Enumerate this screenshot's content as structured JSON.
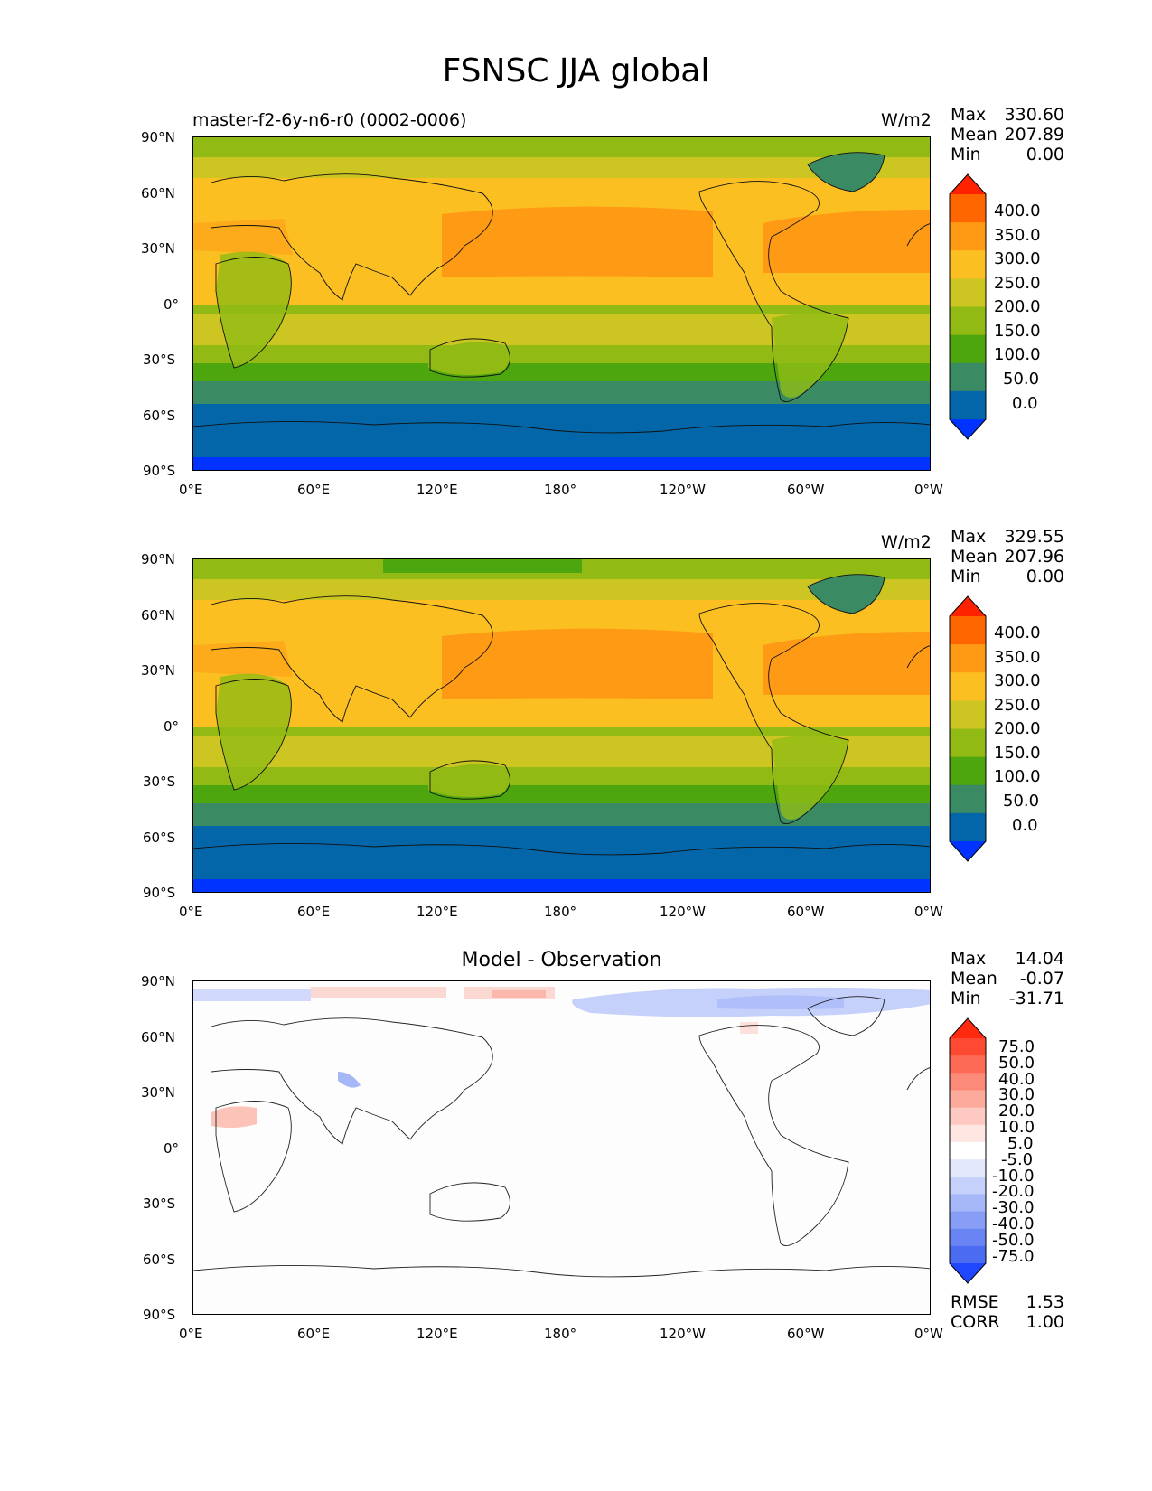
{
  "title": "FSNSC JJA global",
  "panels": [
    {
      "id": "test",
      "left_title": "master-f2-6y-n6-r0 (0002-0006)",
      "center_title": "",
      "units": "W/m2",
      "stats": [
        {
          "name": "Max",
          "value": "330.60"
        },
        {
          "name": "Mean",
          "value": "207.89"
        },
        {
          "name": "Min",
          "value": "0.00"
        }
      ],
      "palette": "abs"
    },
    {
      "id": "reference",
      "left_title": "",
      "center_title": "",
      "units": "W/m2",
      "stats": [
        {
          "name": "Max",
          "value": "329.55"
        },
        {
          "name": "Mean",
          "value": "207.96"
        },
        {
          "name": "Min",
          "value": "0.00"
        }
      ],
      "palette": "abs"
    },
    {
      "id": "diff",
      "left_title": "",
      "center_title": "Model - Observation",
      "units": "",
      "stats": [
        {
          "name": "Max",
          "value": "14.04"
        },
        {
          "name": "Mean",
          "value": "-0.07"
        },
        {
          "name": "Min",
          "value": "-31.71"
        }
      ],
      "extra_stats": [
        {
          "name": "RMSE",
          "value": "1.53"
        },
        {
          "name": "CORR",
          "value": "1.00"
        }
      ],
      "palette": "diff"
    }
  ],
  "lat_ticks": [
    "90°N",
    "60°N",
    "30°N",
    "0°",
    "30°S",
    "60°S",
    "90°S"
  ],
  "lon_ticks": [
    "0°E",
    "60°E",
    "120°E",
    "180°",
    "120°W",
    "60°W",
    "0°W"
  ],
  "colorbar_abs": {
    "labels": [
      "400.0",
      "350.0",
      "300.0",
      "250.0",
      "200.0",
      "150.0",
      "100.0",
      "50.0",
      "0.0"
    ],
    "colors": [
      "#ff2200",
      "#ff6600",
      "#ff9a14",
      "#fbbf22",
      "#cdc521",
      "#91bb14",
      "#4ea60f",
      "#3a8a64",
      "#0366a8",
      "#0033ff"
    ]
  },
  "colorbar_diff": {
    "labels": [
      "75.0",
      "50.0",
      "40.0",
      "30.0",
      "20.0",
      "10.0",
      "5.0",
      "-5.0",
      "-10.0",
      "-20.0",
      "-30.0",
      "-40.0",
      "-50.0",
      "-75.0"
    ],
    "colors": [
      "#ff2a10",
      "#fe4a33",
      "#fd6a55",
      "#fc8a78",
      "#fcaa9b",
      "#fdc9c0",
      "#fee7e3",
      "#ffffff",
      "#e3e8fd",
      "#c5d0fb",
      "#a6b7f8",
      "#889ef6",
      "#6985f3",
      "#4b6cf0",
      "#1f47ff"
    ]
  },
  "chart_data": [
    {
      "type": "heatmap",
      "title": "FSNSC JJA global",
      "subtitle": "master-f2-6y-n6-r0 (0002-0006)",
      "units": "W/m2",
      "xlabel": "",
      "ylabel": "",
      "xlim": [
        0,
        360
      ],
      "ylim": [
        -90,
        90
      ],
      "levels": [
        0,
        50,
        100,
        150,
        200,
        250,
        300,
        350,
        400
      ],
      "stats": {
        "max": 330.6,
        "mean": 207.89,
        "min": 0.0
      },
      "zonal_bands": [
        {
          "lat": [
            82,
            90
          ],
          "value": 175
        },
        {
          "lat": [
            72,
            82
          ],
          "value": 225
        },
        {
          "lat": [
            50,
            72
          ],
          "value": 275
        },
        {
          "lat": [
            18,
            50
          ],
          "value": 310
        },
        {
          "lat": [
            5,
            18
          ],
          "value": 275
        },
        {
          "lat": [
            -8,
            5
          ],
          "value": 240
        },
        {
          "lat": [
            -22,
            5
          ],
          "value": 225
        },
        {
          "lat": [
            -30,
            -22
          ],
          "value": 175
        },
        {
          "lat": [
            -37,
            -30
          ],
          "value": 125
        },
        {
          "lat": [
            -45,
            -37
          ],
          "value": 75
        },
        {
          "lat": [
            -82,
            -45
          ],
          "value": 25
        },
        {
          "lat": [
            -90,
            -82
          ],
          "value": 0
        }
      ]
    },
    {
      "type": "heatmap",
      "units": "W/m2",
      "xlim": [
        0,
        360
      ],
      "ylim": [
        -90,
        90
      ],
      "levels": [
        0,
        50,
        100,
        150,
        200,
        250,
        300,
        350,
        400
      ],
      "stats": {
        "max": 329.55,
        "mean": 207.96,
        "min": 0.0
      }
    },
    {
      "type": "heatmap",
      "title": "Model - Observation",
      "xlim": [
        0,
        360
      ],
      "ylim": [
        -90,
        90
      ],
      "levels": [
        -75,
        -50,
        -40,
        -30,
        -20,
        -10,
        -5,
        5,
        10,
        20,
        30,
        40,
        50,
        75
      ],
      "stats": {
        "max": 14.04,
        "mean": -0.07,
        "min": -31.71,
        "rmse": 1.53,
        "corr": 1.0
      }
    }
  ]
}
